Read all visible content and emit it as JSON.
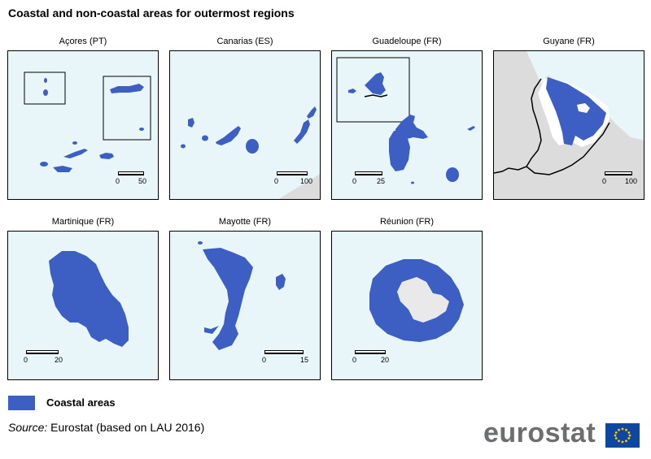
{
  "title": "Coastal and non-coastal areas for outermost regions",
  "panels": [
    {
      "id": "acores",
      "label": "Açores (PT)",
      "scale": {
        "start": "0",
        "end": "50"
      }
    },
    {
      "id": "canarias",
      "label": "Canarias (ES)",
      "scale": {
        "start": "0",
        "end": "100"
      }
    },
    {
      "id": "guadeloupe",
      "label": "Guadeloupe (FR)",
      "scale": {
        "start": "0",
        "end": "25"
      }
    },
    {
      "id": "guyane",
      "label": "Guyane (FR)",
      "scale": {
        "start": "0",
        "end": "100"
      }
    },
    {
      "id": "martinique",
      "label": "Martinique (FR)",
      "scale": {
        "start": "0",
        "end": "20"
      }
    },
    {
      "id": "mayotte",
      "label": "Mayotte (FR)",
      "scale": {
        "start": "0",
        "end": "15"
      }
    },
    {
      "id": "reunion",
      "label": "Réunion (FR)",
      "scale": {
        "start": "0",
        "end": "20"
      }
    }
  ],
  "legend": {
    "label": "Coastal areas",
    "color": "#3d5fc4"
  },
  "source": {
    "prefix": "Source:",
    "text": "Eurostat (based on LAU 2016)"
  },
  "logo": {
    "text": "eurostat"
  },
  "colors": {
    "coastal": "#3d5fc4",
    "sea": "#e9f6f9",
    "land_other": "#dcdcdc",
    "border": "#000000"
  }
}
